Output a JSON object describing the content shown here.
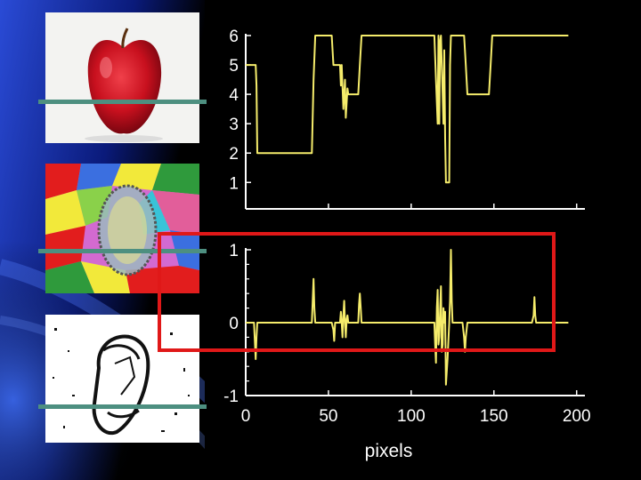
{
  "slide": {
    "highlight_color": "#e01818",
    "scanline_color": "#4d8f80",
    "trace_color": "#f5ec6b",
    "images": [
      {
        "name": "apple-photo"
      },
      {
        "name": "color-segmentation"
      },
      {
        "name": "edge-map"
      }
    ]
  },
  "chart_data": [
    {
      "type": "line",
      "title": "",
      "xlabel": "",
      "ylabel": "",
      "xlim": [
        0,
        205
      ],
      "ylim": [
        0.1,
        6
      ],
      "yticks": [
        "6",
        "5",
        "4",
        "3",
        "2",
        "1"
      ],
      "ytick_values": [
        6,
        5,
        4,
        3,
        2,
        1
      ],
      "xticks": [
        0,
        50,
        100,
        150,
        200
      ],
      "show_xtick_labels": false,
      "series": [
        {
          "name": "",
          "color": "#f5ec6b",
          "x": [
            0,
            6,
            6.5,
            7,
            40,
            41,
            42,
            52,
            53,
            53.5,
            57,
            57.5,
            58,
            59,
            60,
            60.5,
            61.5,
            62,
            62.5,
            63,
            68,
            69,
            70,
            114,
            115,
            116,
            116.5,
            117,
            117.5,
            118,
            119,
            119.5,
            120,
            120.5,
            121,
            123,
            123.5,
            124,
            125,
            132,
            133,
            134,
            147,
            148,
            149,
            174,
            175,
            176,
            195
          ],
          "y": [
            5,
            5,
            4.3,
            2,
            2,
            4.5,
            6,
            6,
            5,
            5,
            5,
            4.3,
            5,
            3.5,
            4.5,
            3.2,
            4.2,
            4,
            4,
            4,
            4,
            5,
            6,
            6,
            4.5,
            3,
            6,
            3,
            5.8,
            6,
            4,
            3,
            5.5,
            2.5,
            1,
            1,
            5,
            6,
            6,
            6,
            5,
            4,
            4,
            5,
            6,
            6,
            6,
            6,
            6
          ]
        }
      ]
    },
    {
      "type": "line",
      "title": "",
      "xlabel": "pixels",
      "ylabel": "",
      "xlim": [
        0,
        205
      ],
      "ylim": [
        -1,
        1
      ],
      "yticks": [
        "1",
        "0",
        "-1"
      ],
      "ytick_values": [
        1,
        0,
        -1
      ],
      "minor_ytick_values": [
        0.8,
        0.6,
        0.4,
        0.2,
        -0.2,
        -0.4,
        -0.6,
        -0.8
      ],
      "xticks": [
        "0",
        "50",
        "100",
        "150",
        "200"
      ],
      "xtick_values": [
        0,
        50,
        100,
        150,
        200
      ],
      "series": [
        {
          "name": "",
          "color": "#f5ec6b",
          "x": [
            0,
            5,
            6,
            6.5,
            7,
            40,
            41,
            41.5,
            42,
            52,
            53,
            53.5,
            54,
            57,
            57.5,
            58,
            58.5,
            59,
            59.5,
            60,
            60.5,
            61,
            61.5,
            62,
            68,
            68.5,
            69,
            69.5,
            70,
            114,
            114.5,
            115,
            115.5,
            116,
            116.5,
            117,
            117.5,
            118,
            118.5,
            119,
            119.5,
            120,
            120.5,
            121,
            122,
            123,
            123.5,
            124,
            124.5,
            125,
            131,
            132,
            132.5,
            133,
            133.5,
            134,
            173,
            174,
            174.5,
            175,
            175.5,
            176,
            195
          ],
          "y": [
            0,
            0,
            -0.5,
            -0.2,
            0,
            0,
            0.6,
            0.2,
            0,
            0,
            -0.1,
            -0.25,
            0,
            0,
            0.15,
            0,
            -0.2,
            0.1,
            0.3,
            0,
            -0.2,
            0.05,
            0.1,
            0,
            0,
            0.25,
            0.4,
            0.2,
            0,
            0,
            -0.3,
            -0.55,
            0.2,
            0.45,
            -0.3,
            -0.2,
            0.2,
            0.5,
            -0.4,
            -0.3,
            0.2,
            0,
            0.15,
            -0.85,
            -0.5,
            0,
            0.3,
            1,
            0.3,
            0,
            0,
            -0.2,
            -0.4,
            -0.2,
            -0.1,
            0,
            0,
            0.1,
            0.35,
            0.1,
            0,
            0,
            0
          ]
        }
      ]
    }
  ]
}
